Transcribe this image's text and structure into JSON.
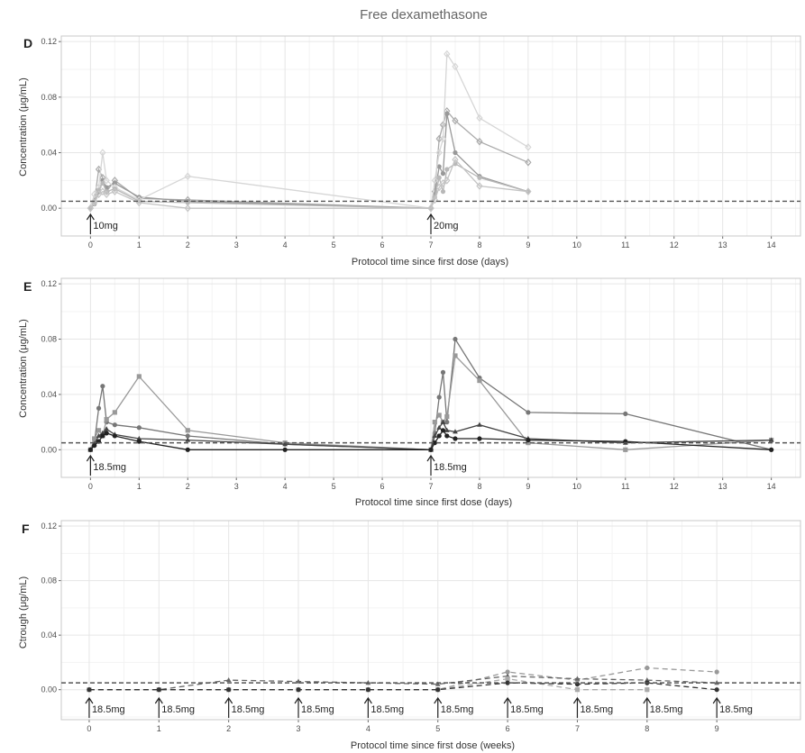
{
  "figure": {
    "title": "Free dexamethasone",
    "colors": {
      "grid": "#ebebeb",
      "panel_border": "#c8c8c8",
      "text": "#4d4d4d",
      "title": "#666666",
      "ref_line": "#555555"
    }
  },
  "chart_data": [
    {
      "panel": "D",
      "type": "line",
      "xlabel": "Protocol time since first dose (days)",
      "ylabel": "Concentration (μg/mL)",
      "xlim": [
        -0.6,
        14.6
      ],
      "ylim": [
        -0.02,
        0.124
      ],
      "xticks": [
        0,
        1,
        2,
        3,
        4,
        5,
        6,
        7,
        8,
        9,
        10,
        11,
        12,
        13,
        14
      ],
      "yticks": [
        0.0,
        0.04,
        0.08,
        0.12
      ],
      "ytick_labels": [
        "0.00",
        "0.04",
        "0.08",
        "0.12"
      ],
      "reference_line": 0.005,
      "annotations": [
        {
          "x": 0,
          "label": "10mg"
        },
        {
          "x": 7,
          "label": "20mg"
        }
      ],
      "series": [
        {
          "color": "#aaaaaa",
          "marker": "diamond",
          "points": [
            [
              0,
              0
            ],
            [
              0.08,
              0.005
            ],
            [
              0.17,
              0.028
            ],
            [
              0.25,
              0.022
            ],
            [
              0.33,
              0.012
            ],
            [
              0.5,
              0.02
            ],
            [
              1,
              0.007
            ],
            [
              2,
              0.006
            ],
            [
              7,
              0
            ],
            [
              7.08,
              0.012
            ],
            [
              7.17,
              0.05
            ],
            [
              7.25,
              0.06
            ],
            [
              7.33,
              0.07
            ],
            [
              7.5,
              0.063
            ],
            [
              8,
              0.048
            ],
            [
              9,
              0.033
            ]
          ]
        },
        {
          "color": "#999999",
          "marker": "circle",
          "points": [
            [
              0,
              0
            ],
            [
              0.08,
              0.003
            ],
            [
              0.17,
              0.012
            ],
            [
              0.25,
              0.02
            ],
            [
              0.33,
              0.015
            ],
            [
              0.5,
              0.018
            ],
            [
              1,
              0.008
            ],
            [
              2,
              0.005
            ],
            [
              7,
              0
            ],
            [
              7.08,
              0.01
            ],
            [
              7.17,
              0.03
            ],
            [
              7.25,
              0.025
            ],
            [
              7.33,
              0.068
            ],
            [
              7.5,
              0.04
            ],
            [
              8,
              0.023
            ],
            [
              9,
              0.012
            ]
          ]
        },
        {
          "color": "#d6d6d6",
          "marker": "diamond",
          "points": [
            [
              0,
              0
            ],
            [
              0.08,
              0.01
            ],
            [
              0.17,
              0.015
            ],
            [
              0.25,
              0.04
            ],
            [
              0.33,
              0.02
            ],
            [
              0.5,
              0.015
            ],
            [
              1,
              0.006
            ],
            [
              2,
              0.023
            ],
            [
              7,
              0
            ],
            [
              7.08,
              0.02
            ],
            [
              7.17,
              0.04
            ],
            [
              7.25,
              0.05
            ],
            [
              7.33,
              0.111
            ],
            [
              7.5,
              0.102
            ],
            [
              8,
              0.065
            ],
            [
              9,
              0.044
            ]
          ]
        },
        {
          "color": "#b8b8b8",
          "marker": "circle",
          "points": [
            [
              0,
              0
            ],
            [
              0.08,
              0.004
            ],
            [
              0.17,
              0.013
            ],
            [
              0.25,
              0.018
            ],
            [
              0.33,
              0.012
            ],
            [
              0.5,
              0.014
            ],
            [
              1,
              0.005
            ],
            [
              2,
              0.004
            ],
            [
              7,
              0
            ],
            [
              7.08,
              0.008
            ],
            [
              7.17,
              0.022
            ],
            [
              7.25,
              0.012
            ],
            [
              7.33,
              0.028
            ],
            [
              7.5,
              0.032
            ],
            [
              8,
              0.022
            ],
            [
              9,
              0.012
            ]
          ]
        },
        {
          "color": "#c4c4c4",
          "marker": "diamond",
          "points": [
            [
              0,
              0
            ],
            [
              0.08,
              0.004
            ],
            [
              0.17,
              0.01
            ],
            [
              0.25,
              0.012
            ],
            [
              0.33,
              0.01
            ],
            [
              0.5,
              0.012
            ],
            [
              1,
              0.004
            ],
            [
              2,
              0
            ],
            [
              7,
              0
            ],
            [
              7.08,
              0.006
            ],
            [
              7.17,
              0.015
            ],
            [
              7.25,
              0.018
            ],
            [
              7.33,
              0.02
            ],
            [
              7.5,
              0.035
            ],
            [
              8,
              0.016
            ],
            [
              9,
              0.012
            ]
          ]
        }
      ]
    },
    {
      "panel": "E",
      "type": "line",
      "xlabel": "Protocol time since first dose (days)",
      "ylabel": "Concentration (μg/mL)",
      "xlim": [
        -0.6,
        14.6
      ],
      "ylim": [
        -0.02,
        0.124
      ],
      "xticks": [
        0,
        1,
        2,
        3,
        4,
        5,
        6,
        7,
        8,
        9,
        10,
        11,
        12,
        13,
        14
      ],
      "yticks": [
        0.0,
        0.04,
        0.08,
        0.12
      ],
      "ytick_labels": [
        "0.00",
        "0.04",
        "0.08",
        "0.12"
      ],
      "reference_line": 0.005,
      "annotations": [
        {
          "x": 0,
          "label": "18.5mg"
        },
        {
          "x": 7,
          "label": "18.5mg"
        }
      ],
      "series": [
        {
          "color": "#777777",
          "marker": "circle",
          "points": [
            [
              0,
              0
            ],
            [
              0.08,
              0.005
            ],
            [
              0.17,
              0.03
            ],
            [
              0.25,
              0.046
            ],
            [
              0.33,
              0.02
            ],
            [
              0.5,
              0.018
            ],
            [
              1,
              0.016
            ],
            [
              2,
              0.01
            ],
            [
              4,
              0.004
            ],
            [
              7,
              0
            ],
            [
              7.08,
              0.012
            ],
            [
              7.17,
              0.038
            ],
            [
              7.25,
              0.056
            ],
            [
              7.33,
              0.02
            ],
            [
              7.5,
              0.08
            ],
            [
              8,
              0.052
            ],
            [
              9,
              0.027
            ],
            [
              11,
              0.026
            ],
            [
              14,
              0
            ]
          ]
        },
        {
          "color": "#999999",
          "marker": "square",
          "points": [
            [
              0,
              0
            ],
            [
              0.08,
              0.008
            ],
            [
              0.17,
              0.014
            ],
            [
              0.25,
              0.01
            ],
            [
              0.33,
              0.022
            ],
            [
              0.5,
              0.027
            ],
            [
              1,
              0.053
            ],
            [
              2,
              0.014
            ],
            [
              4,
              0.005
            ],
            [
              7,
              0
            ],
            [
              7.08,
              0.02
            ],
            [
              7.17,
              0.025
            ],
            [
              7.25,
              0.02
            ],
            [
              7.33,
              0.024
            ],
            [
              7.5,
              0.068
            ],
            [
              8,
              0.05
            ],
            [
              9,
              0.005
            ],
            [
              11,
              0
            ],
            [
              14,
              0.007
            ]
          ]
        },
        {
          "color": "#444444",
          "marker": "triangle",
          "points": [
            [
              0,
              0
            ],
            [
              0.08,
              0.004
            ],
            [
              0.17,
              0.01
            ],
            [
              0.25,
              0.012
            ],
            [
              0.33,
              0.015
            ],
            [
              0.5,
              0.011
            ],
            [
              1,
              0.008
            ],
            [
              2,
              0.007
            ],
            [
              4,
              0.004
            ],
            [
              7,
              0
            ],
            [
              7.08,
              0.01
            ],
            [
              7.17,
              0.016
            ],
            [
              7.25,
              0.02
            ],
            [
              7.33,
              0.014
            ],
            [
              7.5,
              0.013
            ],
            [
              8,
              0.018
            ],
            [
              9,
              0.008
            ],
            [
              11,
              0.005
            ],
            [
              14,
              0.007
            ]
          ]
        },
        {
          "color": "#222222",
          "marker": "circle",
          "points": [
            [
              0,
              0
            ],
            [
              0.08,
              0.003
            ],
            [
              0.17,
              0.006
            ],
            [
              0.25,
              0.01
            ],
            [
              0.33,
              0.012
            ],
            [
              0.5,
              0.01
            ],
            [
              1,
              0.006
            ],
            [
              2,
              0
            ],
            [
              4,
              0
            ],
            [
              7,
              0
            ],
            [
              7.08,
              0.005
            ],
            [
              7.17,
              0.01
            ],
            [
              7.25,
              0.014
            ],
            [
              7.33,
              0.01
            ],
            [
              7.5,
              0.008
            ],
            [
              8,
              0.008
            ],
            [
              9,
              0.007
            ],
            [
              11,
              0.006
            ],
            [
              14,
              0
            ]
          ]
        }
      ]
    },
    {
      "panel": "F",
      "type": "line",
      "xlabel": "Protocol time since first dose (weeks)",
      "ylabel": "Ctrough (μg/mL)",
      "xlim": [
        -0.4,
        10.2
      ],
      "ylim": [
        -0.022,
        0.124
      ],
      "xticks": [
        0,
        1,
        2,
        3,
        4,
        5,
        6,
        7,
        8,
        9
      ],
      "yticks": [
        0.0,
        0.04,
        0.08,
        0.12
      ],
      "ytick_labels": [
        "0.00",
        "0.04",
        "0.08",
        "0.12"
      ],
      "reference_line": 0.005,
      "annotations": [
        {
          "x": 0,
          "label": "18.5mg"
        },
        {
          "x": 1,
          "label": "18.5mg"
        },
        {
          "x": 2,
          "label": "18.5mg"
        },
        {
          "x": 3,
          "label": "18.5mg"
        },
        {
          "x": 4,
          "label": "18.5mg"
        },
        {
          "x": 5,
          "label": "18.5mg"
        },
        {
          "x": 6,
          "label": "18.5mg"
        },
        {
          "x": 7,
          "label": "18.5mg"
        },
        {
          "x": 8,
          "label": "18.5mg"
        },
        {
          "x": 9,
          "label": "18.5mg"
        }
      ],
      "series": [
        {
          "color": "#999999",
          "marker": "circle",
          "dashed": true,
          "points": [
            [
              0,
              0
            ],
            [
              1,
              0
            ],
            [
              2,
              0
            ],
            [
              3,
              0
            ],
            [
              4,
              0
            ],
            [
              5,
              0
            ],
            [
              6,
              0.013
            ],
            [
              7,
              0.007
            ],
            [
              8,
              0.016
            ],
            [
              9,
              0.013
            ]
          ]
        },
        {
          "color": "#666666",
          "marker": "triangle",
          "dashed": true,
          "points": [
            [
              0,
              0
            ],
            [
              1,
              0
            ],
            [
              2,
              0.007
            ],
            [
              3,
              0.006
            ],
            [
              4,
              0.005
            ],
            [
              5,
              0.004
            ],
            [
              6,
              0.01
            ],
            [
              7,
              0.008
            ],
            [
              8,
              0.007
            ],
            [
              9,
              0.005
            ]
          ]
        },
        {
          "color": "#aaaaaa",
          "marker": "square",
          "dashed": true,
          "points": [
            [
              0,
              0
            ],
            [
              1,
              0
            ],
            [
              2,
              0
            ],
            [
              3,
              0
            ],
            [
              4,
              0
            ],
            [
              5,
              0
            ],
            [
              6,
              0.008
            ],
            [
              7,
              0
            ],
            [
              8,
              0
            ],
            [
              9,
              null
            ]
          ]
        },
        {
          "color": "#333333",
          "marker": "circle",
          "dashed": true,
          "points": [
            [
              0,
              0
            ],
            [
              1,
              0
            ],
            [
              2,
              0
            ],
            [
              3,
              0
            ],
            [
              4,
              0
            ],
            [
              5,
              0
            ],
            [
              6,
              0.005
            ],
            [
              7,
              0.004
            ],
            [
              8,
              0.005
            ],
            [
              9,
              0
            ]
          ]
        }
      ]
    }
  ]
}
